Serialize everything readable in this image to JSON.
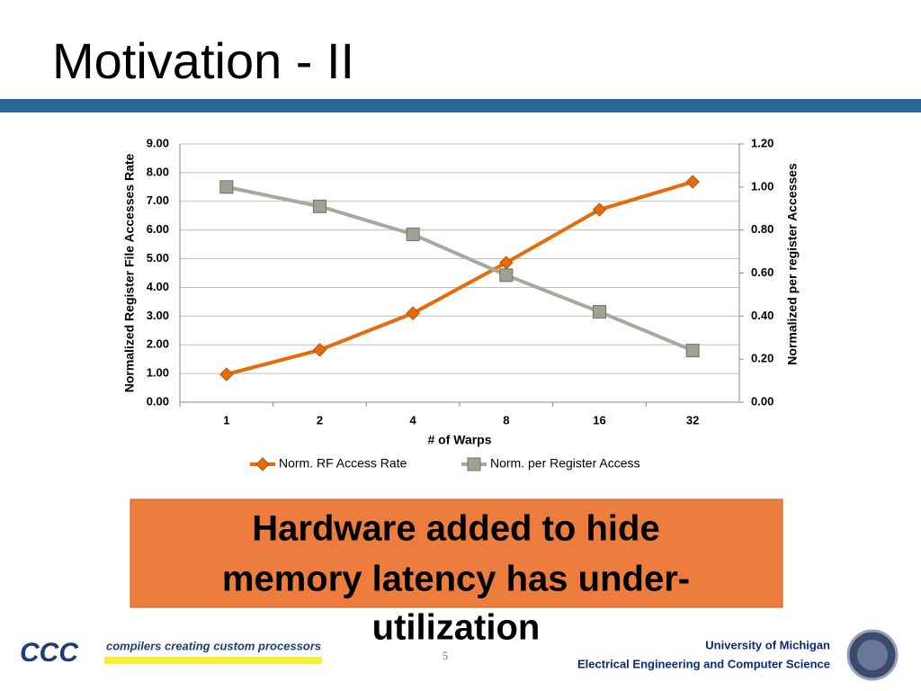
{
  "title": "Motivation - II",
  "callout": [
    "Hardware added to hide",
    "memory latency has under-",
    "utilization"
  ],
  "footer": {
    "slide_number": "5",
    "logo": "CCC",
    "tagline": "compilers creating custom processors",
    "university": "University of Michigan",
    "department": "Electrical Engineering and Computer Science"
  },
  "chart_data": {
    "type": "line",
    "x_label": "# of Warps",
    "y_label": "Normalized Register File Accesses Rate",
    "y2_label": "Normalized per register Accesses",
    "categories": [
      "1",
      "2",
      "4",
      "8",
      "16",
      "32"
    ],
    "series": [
      {
        "name": "Norm. RF Access Rate",
        "color": "#e46c0a",
        "values": [
          0.97,
          1.82,
          3.1,
          4.86,
          6.71,
          7.68
        ]
      },
      {
        "name": "Norm. per Register Access",
        "color": "#a5a99e",
        "axis": "y2",
        "values": [
          1.0,
          0.91,
          0.78,
          0.59,
          0.42,
          0.24
        ]
      }
    ],
    "ylim": [
      0,
      9
    ],
    "yticks": [
      {
        "value": 0,
        "label": "0.00"
      },
      {
        "value": 1,
        "label": "1.00"
      },
      {
        "value": 2,
        "label": "2.00"
      },
      {
        "value": 3,
        "label": "3.00"
      },
      {
        "value": 4,
        "label": "4.00"
      },
      {
        "value": 5,
        "label": "5.00"
      },
      {
        "value": 6,
        "label": "6.00"
      },
      {
        "value": 7,
        "label": "7.00"
      },
      {
        "value": 8,
        "label": "8.00"
      },
      {
        "value": 9,
        "label": "9.00"
      }
    ],
    "y2lim": [
      0,
      1.2
    ],
    "y2ticks": [
      {
        "value": 0,
        "label": "0.00"
      },
      {
        "value": 0.2,
        "label": "0.20"
      },
      {
        "value": 0.4,
        "label": "0.40"
      },
      {
        "value": 0.6,
        "label": "0.60"
      },
      {
        "value": 0.8,
        "label": "0.80"
      },
      {
        "value": 1.0,
        "label": "1.00"
      },
      {
        "value": 1.2,
        "label": "1.20"
      }
    ],
    "grid": true,
    "legend": "bottom"
  }
}
